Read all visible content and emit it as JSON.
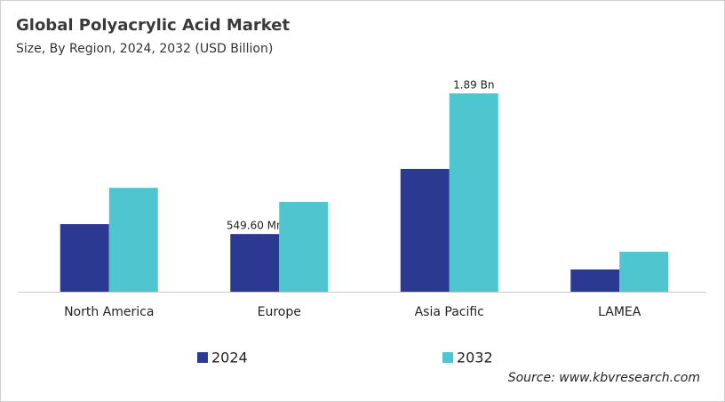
{
  "chart_data": {
    "type": "bar",
    "title": "Global Polyacrylic Acid Market",
    "subtitle": "Size, By Region, 2024, 2032 (USD Billion)",
    "categories": [
      "North America",
      "Europe",
      "Asia Pacific",
      "LAMEA"
    ],
    "series": [
      {
        "name": "2024",
        "color": "#2b3990",
        "values": [
          0.644,
          0.5496,
          1.17,
          0.212
        ],
        "value_labels": [
          null,
          "549.60  Mn",
          null,
          null
        ]
      },
      {
        "name": "2032",
        "color": "#4fc5d0",
        "values": [
          0.99,
          0.856,
          1.89,
          0.381
        ],
        "value_labels": [
          null,
          null,
          "1.89 Bn",
          null
        ]
      }
    ],
    "source": "Source: www.kbvresearch.com"
  }
}
